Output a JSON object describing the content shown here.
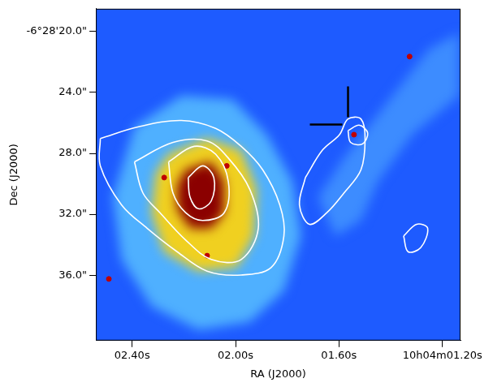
{
  "chart_data": {
    "type": "contour",
    "x_label": "RA (J2000)",
    "y_label": "Dec (J2000)",
    "xlim": [
      2.54,
      1.13
    ],
    "ylim": [
      40.3,
      18.5
    ],
    "xticks": [
      {
        "value": 2.4,
        "label": "02.40s"
      },
      {
        "value": 2.0,
        "label": "02.00s"
      },
      {
        "value": 1.6,
        "label": "01.60s"
      },
      {
        "value": 1.2,
        "label": "10h04m01.20s"
      }
    ],
    "yticks": [
      {
        "value": 20,
        "label": "-6°28'20.0\""
      },
      {
        "value": 24,
        "label": "24.0\""
      },
      {
        "value": 28,
        "label": "28.0\""
      },
      {
        "value": 32,
        "label": "32.0\""
      },
      {
        "value": 36,
        "label": "36.0\""
      }
    ],
    "grid": true,
    "regions": [
      {
        "color": "#4fb0ff",
        "x": [
          2.391,
          2.209,
          2.011,
          1.879,
          1.78,
          1.747,
          1.813,
          1.945,
          2.143,
          2.325,
          2.441,
          2.474
        ],
        "y": [
          26.25,
          24.2,
          24.46,
          26.77,
          29.84,
          33.43,
          37.02,
          39.07,
          39.59,
          38.05,
          34.97,
          30.87
        ]
      },
      {
        "color": "#3d8cff",
        "x": [
          1.68,
          1.581,
          1.416,
          1.251,
          1.135,
          1.135,
          1.317,
          1.449,
          1.515,
          1.614
        ],
        "y": [
          30.87,
          28.31,
          24.72,
          21.13,
          20.1,
          24.2,
          26.77,
          29.84,
          32.41,
          33.43
        ]
      },
      {
        "color": "#f0d020",
        "x": [
          2.259,
          2.11,
          1.978,
          1.919,
          1.928,
          1.995,
          2.143,
          2.276,
          2.325,
          2.309
        ],
        "y": [
          28.05,
          27.02,
          27.79,
          30.36,
          33.43,
          35.49,
          35.74,
          34.46,
          31.9,
          29.33
        ]
      },
      {
        "color": "#8b0000",
        "x": [
          2.193,
          2.094,
          2.044,
          2.044,
          2.094,
          2.176,
          2.226,
          2.226
        ],
        "y": [
          29.08,
          28.56,
          29.84,
          31.9,
          32.92,
          32.92,
          31.64,
          30.1
        ]
      }
    ],
    "contour_color": "#ffffff",
    "contours": [
      {
        "x": [
          2.523,
          2.375,
          2.209,
          2.077,
          1.978,
          1.895,
          1.829,
          1.813,
          1.862,
          1.978,
          2.11,
          2.226,
          2.342,
          2.441,
          2.523
        ],
        "y": [
          27.02,
          26.25,
          25.84,
          26.36,
          27.54,
          29.08,
          31.38,
          33.43,
          35.49,
          35.99,
          35.74,
          34.46,
          32.92,
          31.38,
          28.82
        ]
      },
      {
        "x": [
          2.391,
          2.242,
          2.11,
          2.028,
          1.945,
          1.912,
          1.978,
          2.094,
          2.193,
          2.292,
          2.358
        ],
        "y": [
          28.56,
          27.28,
          27.18,
          28.31,
          30.36,
          32.92,
          34.97,
          34.97,
          33.69,
          31.9,
          30.61
        ]
      },
      {
        "x": [
          2.259,
          2.16,
          2.077,
          2.028,
          2.044,
          2.127,
          2.193,
          2.242
        ],
        "y": [
          28.56,
          27.54,
          28.05,
          29.84,
          31.9,
          32.41,
          31.9,
          30.61
        ]
      },
      {
        "x": [
          2.183,
          2.127,
          2.084,
          2.094,
          2.143,
          2.176
        ],
        "y": [
          29.59,
          28.82,
          29.59,
          31.13,
          31.64,
          30.87
        ]
      },
      {
        "x": [
          1.73,
          1.664,
          1.598,
          1.565,
          1.515,
          1.499,
          1.515,
          1.581,
          1.647,
          1.714,
          1.753
        ],
        "y": [
          29.59,
          27.79,
          26.77,
          25.74,
          25.74,
          27.02,
          29.08,
          30.61,
          31.9,
          32.66,
          31.38
        ]
      },
      {
        "x": [
          1.565,
          1.522,
          1.489,
          1.509,
          1.555
        ],
        "y": [
          26.51,
          26.15,
          26.66,
          27.38,
          27.28
        ]
      },
      {
        "x": [
          1.35,
          1.3,
          1.257,
          1.284,
          1.333
        ],
        "y": [
          33.43,
          32.66,
          32.92,
          34.2,
          34.46
        ]
      }
    ],
    "sources": {
      "color": "#c00000",
      "x": [
        1.542,
        1.327,
        2.49,
        2.276,
        2.034,
        2.11
      ],
      "y": [
        26.77,
        21.64,
        36.25,
        29.59,
        28.82,
        34.72
      ]
    },
    "cross": {
      "x": 1.565,
      "y": 26.1,
      "color": "#000000"
    }
  }
}
